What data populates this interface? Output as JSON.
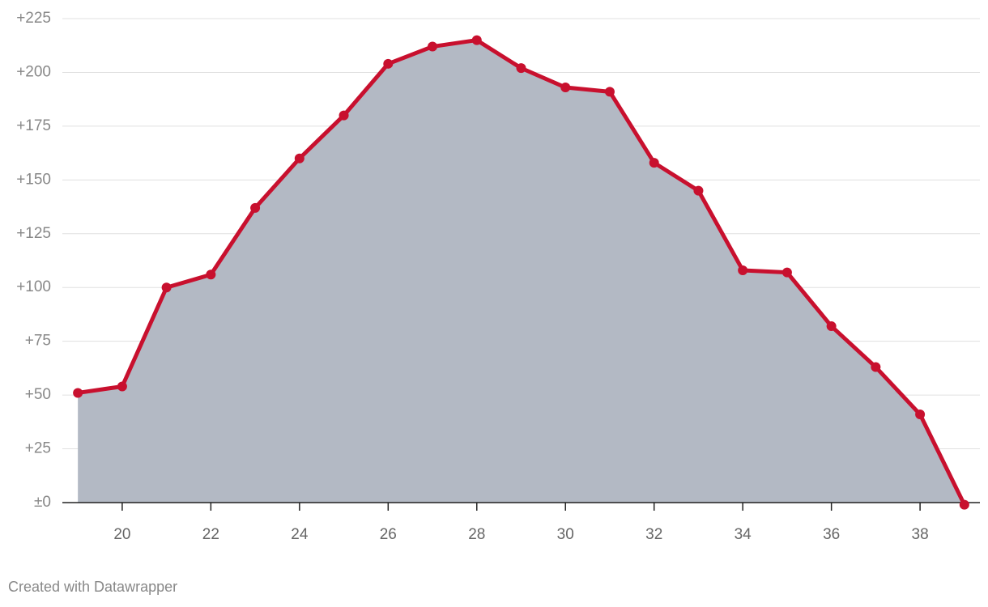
{
  "chart_data": {
    "type": "area",
    "x": [
      19,
      20,
      21,
      22,
      23,
      24,
      25,
      26,
      27,
      28,
      29,
      30,
      31,
      32,
      33,
      34,
      35,
      36,
      37,
      38,
      39
    ],
    "values": [
      51,
      54,
      100,
      106,
      137,
      160,
      180,
      204,
      212,
      215,
      202,
      193,
      191,
      158,
      145,
      108,
      107,
      82,
      63,
      41,
      -1
    ],
    "line_color": "#c8102e",
    "fill_color": "#b3b9c4",
    "xlim": [
      18.65,
      39.35
    ],
    "xticks": [
      20,
      22,
      24,
      26,
      28,
      30,
      32,
      34,
      36,
      38
    ],
    "ylim": [
      0,
      225
    ],
    "yticks": [
      {
        "value": 0,
        "label": "±0"
      },
      {
        "value": 25,
        "label": "+25"
      },
      {
        "value": 50,
        "label": "+50"
      },
      {
        "value": 75,
        "label": "+75"
      },
      {
        "value": 100,
        "label": "+100"
      },
      {
        "value": 125,
        "label": "+125"
      },
      {
        "value": 150,
        "label": "+150"
      },
      {
        "value": 175,
        "label": "+175"
      },
      {
        "value": 200,
        "label": "+200"
      },
      {
        "value": 225,
        "label": "+225"
      }
    ],
    "grid": true
  },
  "footer": "Created with Datawrapper"
}
